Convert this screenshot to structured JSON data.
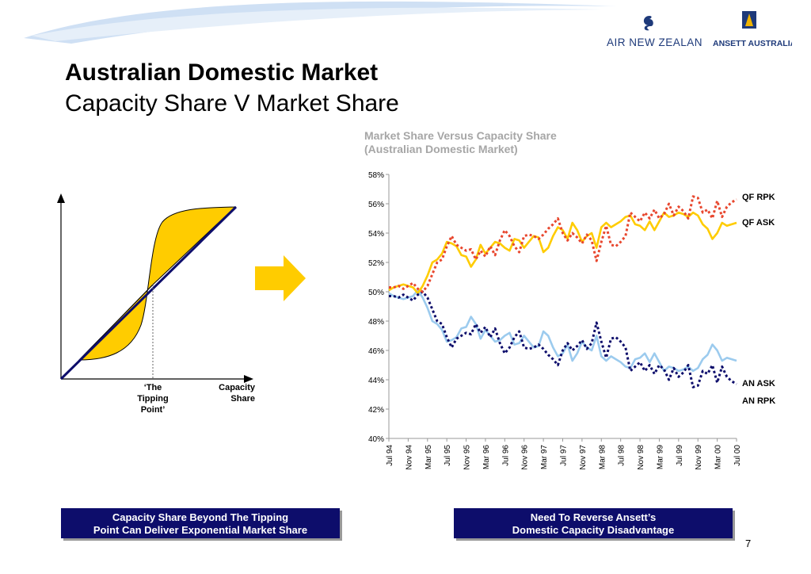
{
  "header": {
    "logo_left": "AIR NEW ZEALAND",
    "logo_right": "ANSETT AUSTRALIA",
    "title": "Australian Domestic Market",
    "subtitle": "Capacity Share V Market Share"
  },
  "colors": {
    "navy": "#0d0d6b",
    "gold": "#ffcc00",
    "red_dotted": "#e8472e",
    "light_blue": "#9ccbee",
    "swoosh": "#c9dcf2"
  },
  "diagram": {
    "tipping_label_lines": [
      "‘The",
      "Tipping",
      "Point’"
    ],
    "capacity_label_lines": [
      "Capacity",
      "Share"
    ],
    "arrow_icon": "right-arrow-icon"
  },
  "chart_data": {
    "type": "line",
    "title": "Market Share Versus Capacity Share",
    "subtitle": "(Australian Domestic Market)",
    "xlabel": "",
    "ylabel": "",
    "x_tick_labels": [
      "Jul 94",
      "Nov 94",
      "Mar 95",
      "Jul 95",
      "Nov 95",
      "Mar 96",
      "Jul 96",
      "Nov 96",
      "Mar 97",
      "Jul 97",
      "Nov 97",
      "Mar 98",
      "Jul 98",
      "Nov 98",
      "Mar 99",
      "Jul 99",
      "Nov 99",
      "Mar 00",
      "Jul 00"
    ],
    "y_tick_labels": [
      "40%",
      "42%",
      "44%",
      "46%",
      "48%",
      "50%",
      "52%",
      "54%",
      "56%",
      "58%"
    ],
    "ylim": [
      40,
      58
    ],
    "x_unit": "months since Jul 94",
    "grid": false,
    "legend": "right-side labels",
    "series": [
      {
        "name": "QF RPK",
        "style": "dotted",
        "color": "#e8472e",
        "x": [
          0,
          1,
          2,
          3,
          4,
          5,
          6,
          7,
          8,
          9,
          10,
          11,
          12,
          13,
          14,
          15,
          16,
          17,
          18,
          19,
          20,
          21,
          22,
          23,
          24,
          25,
          26,
          27,
          28,
          29,
          30,
          31,
          32,
          33,
          34,
          35,
          36,
          37,
          38,
          39,
          40,
          41,
          42,
          43,
          44,
          45,
          46,
          47,
          48,
          49,
          50,
          51,
          52,
          53,
          54,
          55,
          56,
          57,
          58,
          59,
          60,
          61,
          62,
          63,
          64,
          65,
          66,
          67,
          68,
          69,
          70,
          71,
          72
        ],
        "values": [
          50.3,
          50.3,
          50.4,
          50.2,
          50.4,
          50.6,
          50.2,
          50.0,
          50.4,
          51.2,
          52.0,
          52.2,
          53.1,
          53.8,
          53.2,
          53.0,
          52.8,
          52.9,
          52.2,
          52.8,
          52.4,
          53.1,
          52.5,
          53.5,
          54.2,
          53.8,
          53.1,
          52.7,
          53.8,
          53.9,
          53.8,
          53.6,
          53.9,
          54.3,
          54.6,
          55.0,
          54.0,
          53.5,
          54.0,
          53.7,
          53.3,
          53.9,
          53.5,
          52.1,
          53.4,
          54.5,
          53.2,
          53.1,
          53.4,
          53.8,
          55.4,
          55.1,
          54.8,
          55.4,
          55.0,
          55.6,
          55.0,
          55.3,
          56.0,
          55.2,
          55.8,
          55.5,
          55.0,
          56.5,
          56.4,
          55.4,
          55.6,
          55.0,
          56.2,
          55.1,
          55.8,
          56.1,
          56.3
        ]
      },
      {
        "name": "QF ASK",
        "style": "solid",
        "color": "#ffcc00",
        "x": [
          0,
          1,
          2,
          3,
          4,
          5,
          6,
          7,
          8,
          9,
          10,
          11,
          12,
          13,
          14,
          15,
          16,
          17,
          18,
          19,
          20,
          21,
          22,
          23,
          24,
          25,
          26,
          27,
          28,
          29,
          30,
          31,
          32,
          33,
          34,
          35,
          36,
          37,
          38,
          39,
          40,
          41,
          42,
          43,
          44,
          45,
          46,
          47,
          48,
          49,
          50,
          51,
          52,
          53,
          54,
          55,
          56,
          57,
          58,
          59,
          60,
          61,
          62,
          63,
          64,
          65,
          66,
          67,
          68,
          69,
          70,
          71,
          72
        ],
        "values": [
          50.1,
          50.3,
          50.4,
          50.5,
          50.4,
          50.3,
          49.9,
          50.4,
          51.1,
          52.0,
          52.2,
          52.6,
          53.4,
          53.3,
          53.1,
          52.5,
          52.4,
          51.7,
          52.2,
          53.2,
          52.6,
          53.0,
          53.4,
          53.3,
          53.0,
          52.8,
          53.6,
          53.5,
          53.0,
          53.4,
          53.8,
          53.7,
          52.7,
          53.0,
          53.8,
          54.4,
          54.2,
          53.6,
          54.7,
          54.2,
          53.4,
          53.8,
          54.0,
          53.0,
          54.4,
          54.7,
          54.4,
          54.6,
          54.8,
          55.1,
          55.2,
          54.6,
          54.5,
          54.2,
          54.8,
          54.2,
          54.8,
          55.4,
          55.1,
          55.2,
          55.4,
          55.3,
          55.1,
          55.4,
          55.2,
          54.6,
          54.3,
          53.6,
          54.0,
          54.7,
          54.5,
          54.6,
          54.7
        ]
      },
      {
        "name": "AN ASK",
        "style": "solid",
        "color": "#9ccbee",
        "x": [
          0,
          1,
          2,
          3,
          4,
          5,
          6,
          7,
          8,
          9,
          10,
          11,
          12,
          13,
          14,
          15,
          16,
          17,
          18,
          19,
          20,
          21,
          22,
          23,
          24,
          25,
          26,
          27,
          28,
          29,
          30,
          31,
          32,
          33,
          34,
          35,
          36,
          37,
          38,
          39,
          40,
          41,
          42,
          43,
          44,
          45,
          46,
          47,
          48,
          49,
          50,
          51,
          52,
          53,
          54,
          55,
          56,
          57,
          58,
          59,
          60,
          61,
          62,
          63,
          64,
          65,
          66,
          67,
          68,
          69,
          70,
          71,
          72
        ],
        "values": [
          49.9,
          49.7,
          49.6,
          49.5,
          49.6,
          49.7,
          50.1,
          49.6,
          48.9,
          48.0,
          47.8,
          47.4,
          46.6,
          46.7,
          46.9,
          47.5,
          47.6,
          48.3,
          47.8,
          46.8,
          47.4,
          47.0,
          46.6,
          46.7,
          47.0,
          47.2,
          46.4,
          46.5,
          47.0,
          46.6,
          46.2,
          46.3,
          47.3,
          47.0,
          46.2,
          45.6,
          45.8,
          46.4,
          45.3,
          45.8,
          46.6,
          46.2,
          46.0,
          47.0,
          45.6,
          45.3,
          45.6,
          45.4,
          45.2,
          44.9,
          44.8,
          45.4,
          45.5,
          45.8,
          45.2,
          45.8,
          45.2,
          44.6,
          44.9,
          44.8,
          44.6,
          44.7,
          44.9,
          44.6,
          44.8,
          45.4,
          45.7,
          46.4,
          46.0,
          45.3,
          45.5,
          45.4,
          45.3
        ]
      },
      {
        "name": "AN RPK",
        "style": "dotted",
        "color": "#0d0d6b",
        "x": [
          0,
          1,
          2,
          3,
          4,
          5,
          6,
          7,
          8,
          9,
          10,
          11,
          12,
          13,
          14,
          15,
          16,
          17,
          18,
          19,
          20,
          21,
          22,
          23,
          24,
          25,
          26,
          27,
          28,
          29,
          30,
          31,
          32,
          33,
          34,
          35,
          36,
          37,
          38,
          39,
          40,
          41,
          42,
          43,
          44,
          45,
          46,
          47,
          48,
          49,
          50,
          51,
          52,
          53,
          54,
          55,
          56,
          57,
          58,
          59,
          60,
          61,
          62,
          63,
          64,
          65,
          66,
          67,
          68,
          69,
          70,
          71,
          72
        ],
        "values": [
          49.7,
          49.7,
          49.6,
          49.8,
          49.6,
          49.4,
          49.8,
          50.0,
          49.6,
          48.8,
          48.0,
          47.8,
          46.9,
          46.2,
          46.8,
          47.0,
          47.2,
          47.1,
          47.8,
          47.2,
          47.6,
          46.9,
          47.5,
          46.5,
          45.8,
          46.2,
          46.9,
          47.3,
          46.2,
          46.1,
          46.2,
          46.4,
          46.1,
          45.7,
          45.4,
          45.0,
          46.0,
          46.5,
          46.0,
          46.3,
          46.7,
          46.1,
          46.5,
          47.9,
          46.6,
          45.5,
          46.8,
          46.9,
          46.6,
          46.2,
          44.6,
          44.9,
          45.2,
          44.6,
          45.0,
          44.4,
          45.0,
          44.7,
          44.0,
          44.8,
          44.2,
          44.5,
          45.0,
          43.5,
          43.6,
          44.6,
          44.4,
          45.0,
          43.8,
          44.9,
          44.2,
          43.9,
          43.7
        ]
      }
    ]
  },
  "footer": {
    "box_left_lines": [
      "Capacity Share Beyond The Tipping",
      "Point Can Deliver Exponential Market Share"
    ],
    "box_right_lines": [
      "Need To Reverse Ansett’s",
      "Domestic Capacity Disadvantage"
    ],
    "page_number": "7"
  }
}
